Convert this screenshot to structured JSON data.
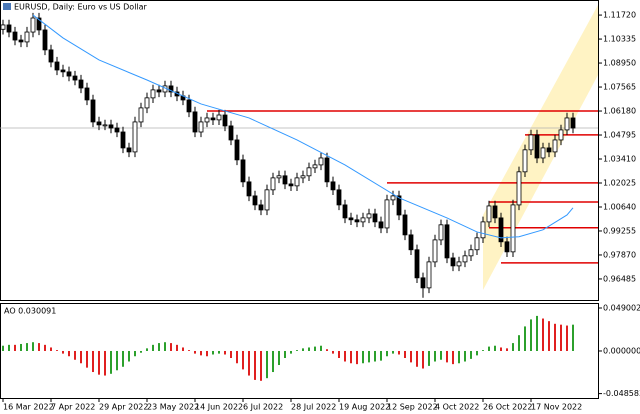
{
  "chart_data": [
    {
      "type": "candlestick",
      "title": "EURUSD, Daily:  Euro vs US Dollar",
      "color": "#000000",
      "categories": [
        "16 Mar 2022",
        null,
        null,
        null,
        null,
        null,
        null,
        null,
        "7 Apr 2022",
        null,
        null,
        null,
        null,
        null,
        null,
        null,
        "29 Apr 2022",
        null,
        null,
        null,
        null,
        null,
        null,
        null,
        "23 May 2022",
        null,
        null,
        null,
        null,
        null,
        null,
        null,
        "14 Jun 2022",
        null,
        null,
        null,
        null,
        null,
        null,
        null,
        "6 Jul 2022",
        null,
        null,
        null,
        null,
        null,
        null,
        null,
        "28 Jul 2022",
        null,
        null,
        null,
        null,
        null,
        null,
        null,
        "19 Aug 2022",
        null,
        null,
        null,
        null,
        null,
        null,
        null,
        "12 Sep 2022",
        null,
        null,
        null,
        null,
        null,
        null,
        null,
        "4 Oct 2022",
        null,
        null,
        null,
        null,
        null,
        null,
        null,
        "26 Oct 2022",
        null,
        null,
        null,
        null,
        null,
        null,
        null,
        "17 Nov 2022",
        null,
        null,
        null,
        null,
        null,
        null,
        null
      ],
      "open": [
        1.109,
        1.1115,
        1.1074,
        1.1028,
        1.1017,
        1.1074,
        1.1155,
        1.1086,
        1.0971,
        1.0901,
        1.0855,
        1.0844,
        1.082,
        1.0797,
        1.0751,
        1.0682,
        1.0555,
        1.0538,
        1.0538,
        1.052,
        1.0497,
        1.0405,
        1.0382,
        1.0555,
        1.0636,
        1.0694,
        1.074,
        1.0728,
        1.0763,
        1.0728,
        1.0705,
        1.0682,
        1.0613,
        1.0497,
        1.0555,
        1.0578,
        1.0567,
        1.0595,
        1.0532,
        1.0451,
        1.0336,
        1.0209,
        1.0128,
        1.0076,
        1.0047,
        1.0163,
        1.0232,
        1.0244,
        1.0197,
        1.0186,
        1.0232,
        1.0244,
        1.029,
        1.0307,
        1.0347,
        1.0209,
        1.0163,
        1.0076,
        1.0001,
        0.999,
        0.9978,
        1.0001,
        1.0024,
        0.9978,
        0.9943,
        1.0105,
        1.0128,
        1.0018,
        0.9903,
        0.9817,
        0.9655,
        0.9597,
        0.9747,
        0.9874,
        0.9961,
        0.977,
        0.9724,
        0.9747,
        0.9782,
        0.9817,
        0.9886,
        0.9978,
        1.007,
        1.0001,
        0.9863,
        0.9805,
        1.0076,
        1.0267,
        1.0394,
        1.048,
        1.0347,
        1.0405,
        1.0382,
        1.0451,
        1.0509,
        1.0578
      ],
      "high": [
        1.1145,
        1.1145,
        1.1104,
        1.1058,
        1.1104,
        1.1185,
        1.1185,
        1.1116,
        1.1001,
        1.0931,
        1.0885,
        1.0874,
        1.085,
        1.0827,
        1.0781,
        1.0712,
        1.0585,
        1.0568,
        1.0568,
        1.055,
        1.0527,
        1.0435,
        1.0585,
        1.0666,
        1.0724,
        1.077,
        1.077,
        1.0793,
        1.0793,
        1.0758,
        1.0735,
        1.0712,
        1.0643,
        1.0585,
        1.0608,
        1.0608,
        1.0625,
        1.0625,
        1.0562,
        1.0481,
        1.0366,
        1.0239,
        1.0158,
        1.0106,
        1.0193,
        1.0262,
        1.0274,
        1.0274,
        1.0227,
        1.0262,
        1.0274,
        1.032,
        1.0337,
        1.0377,
        1.0377,
        1.0239,
        1.0193,
        1.0106,
        1.0031,
        1.002,
        1.0031,
        1.0054,
        1.0054,
        1.0008,
        1.0135,
        1.0158,
        1.0158,
        1.0048,
        0.9933,
        0.9847,
        0.9685,
        0.9777,
        0.9904,
        0.9991,
        0.9991,
        0.98,
        0.9777,
        0.9812,
        0.9847,
        0.9916,
        1.0008,
        1.01,
        1.01,
        1.0031,
        0.9893,
        1.0106,
        1.0297,
        1.0424,
        1.051,
        1.051,
        1.0435,
        1.0435,
        1.0481,
        1.0539,
        1.0608,
        1.0608
      ],
      "low": [
        1.106,
        1.1044,
        1.0998,
        1.0987,
        1.0987,
        1.1044,
        1.1056,
        1.0941,
        1.0871,
        1.0825,
        1.0814,
        1.079,
        1.0767,
        1.0721,
        1.0652,
        1.0525,
        1.0508,
        1.0508,
        1.049,
        1.0467,
        1.0375,
        1.0352,
        1.0352,
        1.0525,
        1.0606,
        1.0664,
        1.0698,
        1.0698,
        1.0698,
        1.0675,
        1.0652,
        1.0583,
        1.0467,
        1.0467,
        1.0525,
        1.0537,
        1.0537,
        1.0502,
        1.0421,
        1.0306,
        1.0179,
        1.0098,
        1.0046,
        1.0017,
        1.0017,
        1.0133,
        1.0202,
        1.0167,
        1.0156,
        1.0156,
        1.0202,
        1.0214,
        1.026,
        1.0277,
        1.0179,
        1.0133,
        1.0046,
        0.9971,
        0.996,
        0.9948,
        0.9948,
        0.9971,
        0.9948,
        0.9913,
        0.9913,
        1.0075,
        0.9988,
        0.9873,
        0.9787,
        0.9625,
        0.954,
        0.9567,
        0.9717,
        0.9844,
        0.974,
        0.9694,
        0.9694,
        0.9717,
        0.9752,
        0.9787,
        0.9856,
        0.9948,
        0.9971,
        0.9833,
        0.9775,
        0.9775,
        1.0046,
        1.0237,
        1.0364,
        1.0317,
        1.0317,
        1.0352,
        1.0352,
        1.0421,
        1.0479,
        1.049
      ],
      "close": [
        1.1115,
        1.1074,
        1.1028,
        1.1017,
        1.1074,
        1.1155,
        1.1086,
        1.0971,
        1.0901,
        1.0855,
        1.0844,
        1.082,
        1.0797,
        1.0751,
        1.0682,
        1.0555,
        1.0538,
        1.0538,
        1.052,
        1.0497,
        1.0405,
        1.0382,
        1.0555,
        1.0636,
        1.0694,
        1.074,
        1.0728,
        1.0763,
        1.0728,
        1.0705,
        1.0682,
        1.0613,
        1.0497,
        1.0555,
        1.0578,
        1.0567,
        1.0595,
        1.0532,
        1.0451,
        1.0336,
        1.0209,
        1.0128,
        1.0076,
        1.0047,
        1.0163,
        1.0232,
        1.0244,
        1.0197,
        1.0186,
        1.0232,
        1.0244,
        1.029,
        1.0307,
        1.0347,
        1.0209,
        1.0163,
        1.0076,
        1.0001,
        0.999,
        0.9978,
        1.0001,
        1.0024,
        0.9978,
        0.9943,
        1.0105,
        1.0128,
        1.0018,
        0.9903,
        0.9817,
        0.9655,
        0.9597,
        0.9747,
        0.9874,
        0.9961,
        0.977,
        0.9724,
        0.9747,
        0.9782,
        0.9817,
        0.9886,
        0.9978,
        1.007,
        1.0001,
        0.9863,
        0.9805,
        1.0076,
        1.0267,
        1.0394,
        1.048,
        1.0347,
        1.0405,
        1.0382,
        1.0451,
        1.0509,
        1.0578,
        1.052
      ],
      "ma_x": [
        5,
        10,
        16,
        24,
        33,
        41,
        49,
        57,
        66,
        74,
        79,
        83,
        86,
        90,
        94,
        95
      ],
      "ma_values": [
        1.1172,
        1.104,
        1.0913,
        1.0797,
        1.0659,
        1.0578,
        1.0451,
        1.0307,
        1.0117,
        1.0001,
        0.992,
        0.9886,
        0.9892,
        0.9932,
        1.0018,
        1.0059
      ],
      "ma_color": "#3399ff",
      "levels": [
        {
          "value": 1.0618,
          "from": 34
        },
        {
          "value": 1.048,
          "from": 87
        },
        {
          "value": 1.0203,
          "from": 64
        },
        {
          "value": 1.0093,
          "from": 81
        },
        {
          "value": 0.9944,
          "from": 81
        },
        {
          "value": 0.9741,
          "from": 83
        }
      ],
      "level_color": "#e00000",
      "ylim": [
        0.9527,
        1.1259
      ],
      "yticks": [
        0.96485,
        {
          "value": 0.9787,
          "label": "0.97870"
        },
        0.99255,
        {
          "value": 1.0064,
          "label": "1.00640"
        },
        1.02025,
        {
          "value": 1.0341,
          "label": "1.03410"
        },
        1.04795,
        {
          "value": 1.0618,
          "label": "1.06180"
        },
        1.07565,
        {
          "value": 1.0895,
          "label": "1.08950"
        },
        1.10335,
        {
          "value": 1.1172,
          "label": "1.11720"
        }
      ]
    },
    {
      "type": "bar",
      "title": "AO 0.030091",
      "up_color": "#2ca02c",
      "down_color": "#e02020",
      "values": [
        0.006,
        0.007,
        0.007,
        0.008,
        0.009,
        0.01,
        0.009,
        0.007,
        0.004,
        0.001,
        -0.003,
        -0.006,
        -0.01,
        -0.014,
        -0.019,
        -0.024,
        -0.027,
        -0.028,
        -0.026,
        -0.022,
        -0.018,
        -0.012,
        -0.006,
        -0.002,
        0.003,
        0.007,
        0.009,
        0.01,
        0.009,
        0.007,
        0.004,
        0.001,
        -0.003,
        -0.005,
        -0.006,
        -0.004,
        -0.003,
        -0.004,
        -0.008,
        -0.014,
        -0.021,
        -0.028,
        -0.033,
        -0.034,
        -0.031,
        -0.024,
        -0.016,
        -0.008,
        -0.003,
        0.001,
        0.003,
        0.004,
        0.005,
        0.006,
        0.002,
        -0.003,
        -0.008,
        -0.012,
        -0.014,
        -0.015,
        -0.014,
        -0.013,
        -0.012,
        -0.011,
        -0.006,
        -0.003,
        -0.004,
        -0.008,
        -0.013,
        -0.018,
        -0.02,
        -0.017,
        -0.012,
        -0.01,
        -0.013,
        -0.015,
        -0.014,
        -0.012,
        -0.009,
        -0.005,
        0.001,
        0.005,
        0.006,
        0.004,
        0.003,
        0.009,
        0.018,
        0.028,
        0.036,
        0.04,
        0.037,
        0.034,
        0.031,
        0.03,
        0.029,
        0.03
      ],
      "ylim": [
        -0.0536,
        0.0547
      ],
      "yticks": [
        0.049002,
        {
          "value": 0,
          "label": "0.000000"
        },
        -0.048583
      ]
    }
  ]
}
